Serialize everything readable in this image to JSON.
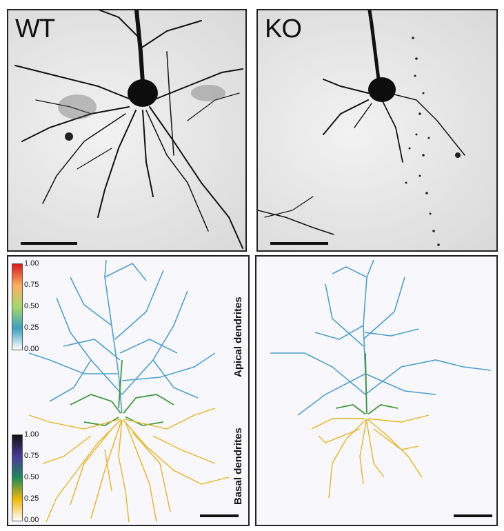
{
  "panels": {
    "wt_micrograph": {
      "label": "WT"
    },
    "ko_micrograph": {
      "label": "KO"
    }
  },
  "colorbar_apical": {
    "ticks": [
      "1.00",
      "0.75",
      "0.50",
      "0.25",
      "0.00"
    ],
    "colors": [
      "#d7191c",
      "#fdae61",
      "#a6d96a",
      "#3ba0c0",
      "#ffffff"
    ]
  },
  "colorbar_basal": {
    "ticks": [
      "1.00",
      "0.75",
      "0.50",
      "0.25",
      "0.00"
    ],
    "colors": [
      "#111111",
      "#4a3b9b",
      "#1f8a5a",
      "#f2b705",
      "#ffffff"
    ]
  },
  "axis_labels": {
    "apical": "Apical dendrites",
    "basal": "Basal dendrites"
  },
  "colors": {
    "apical_trace": "#4a9fcf",
    "basal_trace": "#e8b21a",
    "green_trace": "#3f9a3a",
    "stain": "#111111"
  }
}
